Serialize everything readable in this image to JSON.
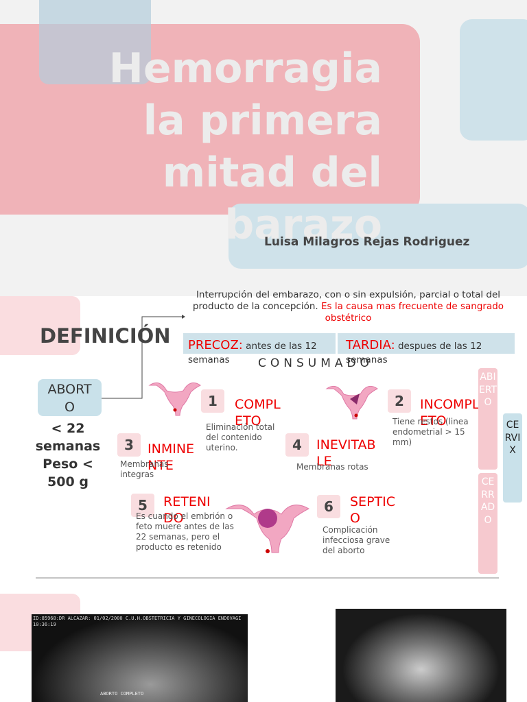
{
  "title_slide": {
    "title_lines": [
      "Hemorragia",
      "la primera",
      "mitad del",
      "barazo"
    ],
    "author": "Luisa Milagros Rejas Rodriguez"
  },
  "definition_slide": {
    "heading": "DEFINICIÓN",
    "definition": "Interrupción del embarazo, con o sin expulsión, parcial o total del producto de la concepción.",
    "definition_highlight": "Es la causa mas frecuente de sangrado obstétrico",
    "aborto": "ABORTO",
    "criteria": "< 22 semanas Peso < 500 g",
    "precoz": {
      "label": "PRECOZ:",
      "text": "antes de las 12 semanas"
    },
    "tardia": {
      "label": "TARDIA:",
      "text": "despues de las 12 semanas"
    },
    "consumado": "CONSUMADO",
    "types": [
      {
        "number": "1",
        "name": "COMPLETO",
        "description": "Eliminación total del contenido uterino."
      },
      {
        "number": "2",
        "name": "INCOMPLETO",
        "description": "Tiene restos (linea endometrial > 15 mm)"
      },
      {
        "number": "3",
        "name": "INMINENTE",
        "description": "Membranas integras"
      },
      {
        "number": "4",
        "name": "INEVITABLE",
        "description": "Membranas rotas"
      },
      {
        "number": "5",
        "name": "RETENIDO",
        "description": "Es cuando el embrión o feto muere antes de las 22 semanas, pero el producto es retenido"
      },
      {
        "number": "6",
        "name": "SEPTICO",
        "description": "Complicación infecciosa grave del aborto"
      }
    ],
    "cervix": {
      "label": "CERVIX",
      "open": "ABIERTO",
      "closed": "CERRADO"
    }
  },
  "ultrasound_slide": {
    "left_image_header": "ID:85968:DR ALCAZAR: 01/02/2000 C.U.H.OBSTETRICIA Y GINECOLOGIA ENDOVAGI 10:36:19",
    "left_image_caption": "ABORTO COMPLETO"
  }
}
